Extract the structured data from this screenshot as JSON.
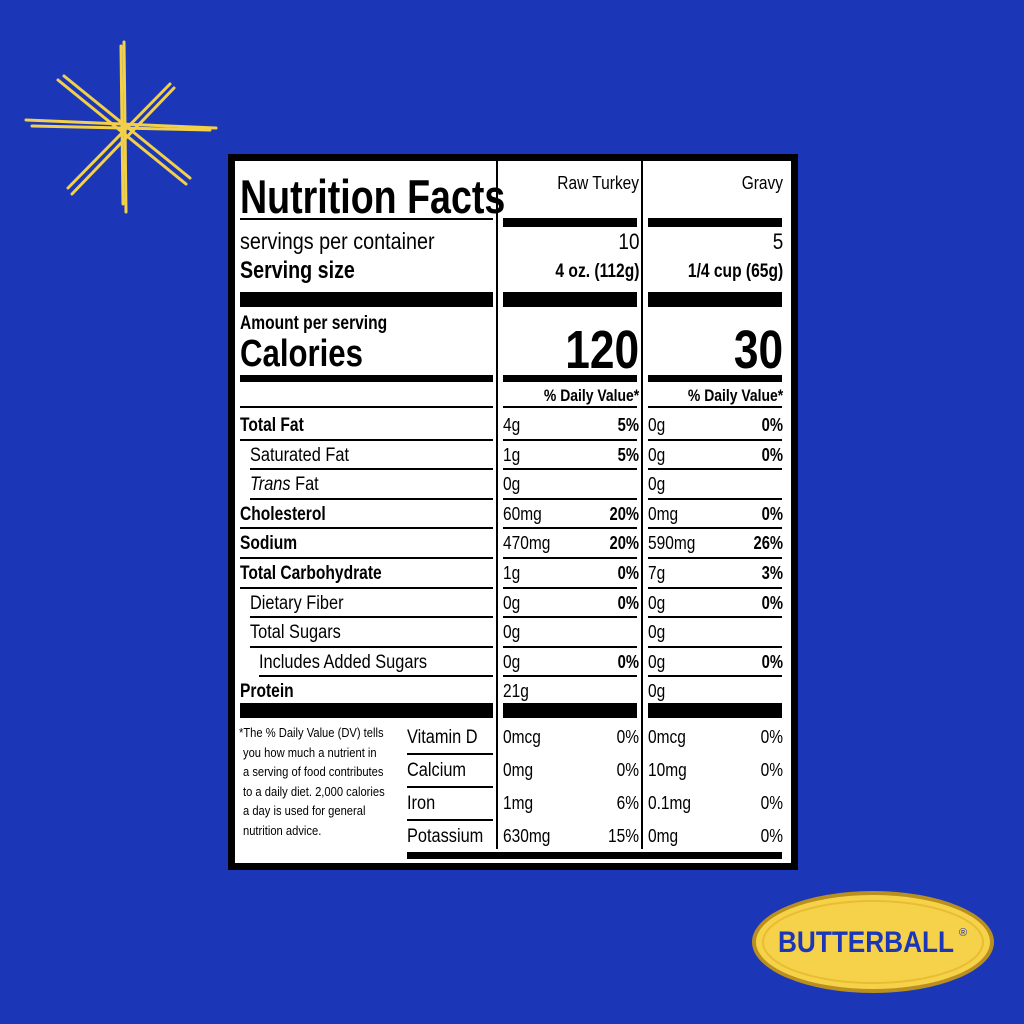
{
  "label": {
    "title": "Nutrition Facts",
    "columns": [
      {
        "name": "Raw Turkey",
        "servings": "10",
        "serving_size": "4 oz. (112g)",
        "calories": "120"
      },
      {
        "name": "Gravy",
        "servings": "5",
        "serving_size": "1/4 cup (65g)",
        "calories": "30"
      }
    ],
    "servings_label": "servings per container",
    "serving_size_label": "Serving size",
    "amount_label": "Amount per serving",
    "calories_label": "Calories",
    "dv_header": "% Daily Value*",
    "nutrients": [
      {
        "name": "Total Fat",
        "bold": true,
        "indent": 0,
        "turkey": "4g",
        "turkey_dv": "5%",
        "gravy": "0g",
        "gravy_dv": "0%"
      },
      {
        "name": "Saturated Fat",
        "bold": false,
        "indent": 1,
        "turkey": "1g",
        "turkey_dv": "5%",
        "gravy": "0g",
        "gravy_dv": "0%"
      },
      {
        "name": "Fat",
        "italic_prefix": "Trans",
        "bold": false,
        "indent": 1,
        "turkey": "0g",
        "turkey_dv": "",
        "gravy": "0g",
        "gravy_dv": ""
      },
      {
        "name": "Cholesterol",
        "bold": true,
        "indent": 0,
        "turkey": "60mg",
        "turkey_dv": "20%",
        "gravy": "0mg",
        "gravy_dv": "0%"
      },
      {
        "name": "Sodium",
        "bold": true,
        "indent": 0,
        "turkey": "470mg",
        "turkey_dv": "20%",
        "gravy": "590mg",
        "gravy_dv": "26%"
      },
      {
        "name": "Total Carbohydrate",
        "bold": true,
        "indent": 0,
        "turkey": "1g",
        "turkey_dv": "0%",
        "gravy": "7g",
        "gravy_dv": "3%"
      },
      {
        "name": "Dietary Fiber",
        "bold": false,
        "indent": 1,
        "turkey": "0g",
        "turkey_dv": "0%",
        "gravy": "0g",
        "gravy_dv": "0%"
      },
      {
        "name": "Total Sugars",
        "bold": false,
        "indent": 1,
        "turkey": "0g",
        "turkey_dv": "",
        "gravy": "0g",
        "gravy_dv": ""
      },
      {
        "name": "Includes Added Sugars",
        "bold": false,
        "indent": 2,
        "turkey": "0g",
        "turkey_dv": "0%",
        "gravy": "0g",
        "gravy_dv": "0%"
      },
      {
        "name": "Protein",
        "bold": true,
        "indent": 0,
        "turkey": "21g",
        "turkey_dv": "",
        "gravy": "0g",
        "gravy_dv": ""
      }
    ],
    "footnote": [
      "*The % Daily Value (DV) tells",
      "you how much a nutrient in",
      "a serving of food contributes",
      "to a daily diet. 2,000 calories",
      "a day is used for general",
      "nutrition advice."
    ],
    "vitamins": [
      {
        "name": "Vitamin D",
        "turkey": "0mcg",
        "turkey_dv": "0%",
        "gravy": "0mcg",
        "gravy_dv": "0%"
      },
      {
        "name": "Calcium",
        "turkey": "0mg",
        "turkey_dv": "0%",
        "gravy": "10mg",
        "gravy_dv": "0%"
      },
      {
        "name": "Iron",
        "turkey": "1mg",
        "turkey_dv": "6%",
        "gravy": "0.1mg",
        "gravy_dv": "0%"
      },
      {
        "name": "Potassium",
        "turkey": "630mg",
        "turkey_dv": "15%",
        "gravy": "0mg",
        "gravy_dv": "0%"
      }
    ]
  },
  "brand": {
    "logo_text": "BUTTERBALL",
    "registered": "®"
  },
  "colors": {
    "background": "#1c36b8",
    "sparkle": "#f2d04a",
    "logo_yellow": "#f6d24a",
    "logo_blue": "#1c36b8"
  }
}
